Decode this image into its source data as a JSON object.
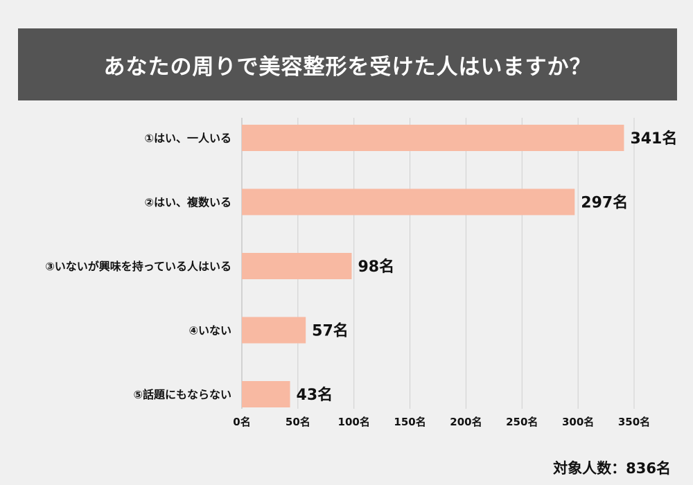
{
  "colors": {
    "background": "#f0f0f0",
    "title_bg": "#545454",
    "title_text": "#ffffff",
    "bar": "#f8b9a2",
    "grid": "#cfcfcf",
    "text": "#111111"
  },
  "chart_data": {
    "type": "bar",
    "orientation": "horizontal",
    "title": "あなたの周りで美容整形を受けた人はいますか？",
    "categories": [
      "①はい、一人いる",
      "②はい、複数いる",
      "③いないが興味を持っている人はいる",
      "④いない",
      "⑤話題にもならない"
    ],
    "values": [
      341,
      297,
      98,
      57,
      43
    ],
    "value_labels": [
      "341名",
      "297名",
      "98名",
      "57名",
      "43名"
    ],
    "xlim": [
      0,
      350
    ],
    "x_ticks": [
      0,
      50,
      100,
      150,
      200,
      250,
      300,
      350
    ],
    "x_tick_labels": [
      "0名",
      "50名",
      "100名",
      "150名",
      "200名",
      "250名",
      "300名",
      "350名"
    ],
    "grid": true,
    "legend": "none"
  },
  "footer": {
    "respondents": "対象人数：836名"
  }
}
